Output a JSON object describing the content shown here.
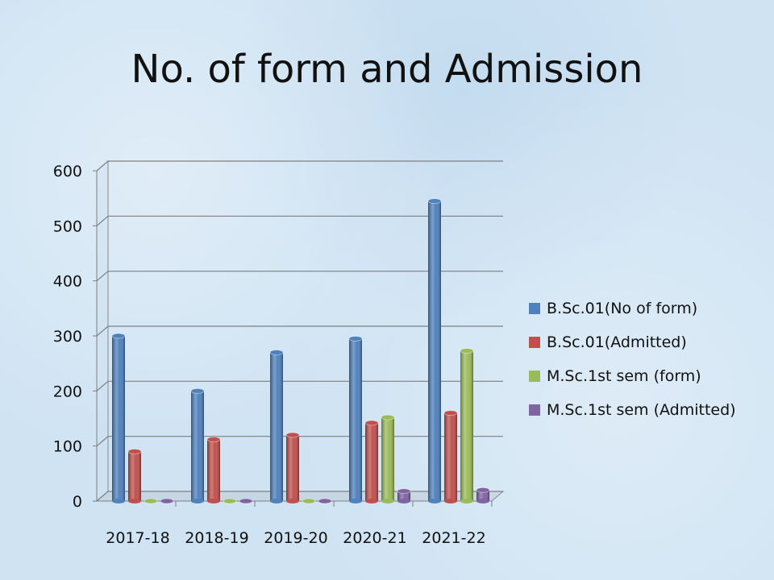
{
  "title": "No. of form and Admission",
  "chart_data": {
    "type": "bar",
    "title": "No. of form and Admission",
    "categories": [
      "2017-18",
      "2018-19",
      "2019-20",
      "2020-21",
      "2021-22"
    ],
    "series": [
      {
        "name": "B.Sc.01(No of form)",
        "values": [
          300,
          200,
          270,
          295,
          545
        ],
        "color": "#4f81bd"
      },
      {
        "name": "B.Sc.01(Admitted)",
        "values": [
          90,
          112,
          120,
          142,
          160
        ],
        "color": "#c0504d"
      },
      {
        "name": "M.Sc.1st sem (form)",
        "values": [
          0,
          0,
          0,
          152,
          273
        ],
        "color": "#9bbb59"
      },
      {
        "name": "M.Sc.1st sem (Admitted)",
        "values": [
          0,
          0,
          0,
          18,
          20
        ],
        "color": "#8064a2"
      }
    ],
    "y_ticks": [
      0,
      100,
      200,
      300,
      400,
      500,
      600
    ],
    "ylim": [
      0,
      600
    ],
    "grid": true,
    "legend_position": "right"
  }
}
